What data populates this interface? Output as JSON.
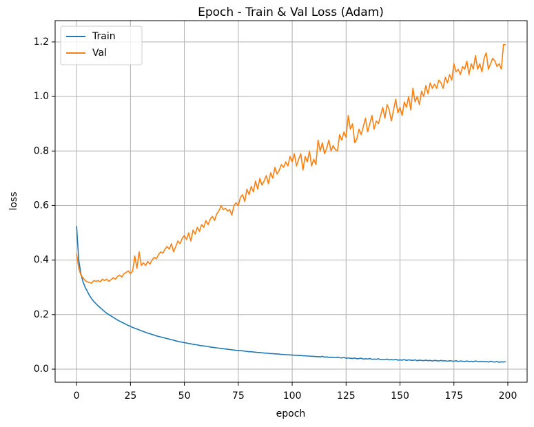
{
  "chart_data": {
    "type": "line",
    "title": "Epoch - Train & Val Loss (Adam)",
    "x_label": "epoch",
    "y_label": "loss",
    "x": [
      0,
      1,
      2,
      3,
      4,
      5,
      6,
      7,
      8,
      9,
      10,
      11,
      12,
      13,
      14,
      15,
      16,
      17,
      18,
      19,
      20,
      21,
      22,
      23,
      24,
      25,
      26,
      27,
      28,
      29,
      30,
      31,
      32,
      33,
      34,
      35,
      36,
      37,
      38,
      39,
      40,
      41,
      42,
      43,
      44,
      45,
      46,
      47,
      48,
      49,
      50,
      51,
      52,
      53,
      54,
      55,
      56,
      57,
      58,
      59,
      60,
      61,
      62,
      63,
      64,
      65,
      66,
      67,
      68,
      69,
      70,
      71,
      72,
      73,
      74,
      75,
      76,
      77,
      78,
      79,
      80,
      81,
      82,
      83,
      84,
      85,
      86,
      87,
      88,
      89,
      90,
      91,
      92,
      93,
      94,
      95,
      96,
      97,
      98,
      99,
      100,
      101,
      102,
      103,
      104,
      105,
      106,
      107,
      108,
      109,
      110,
      111,
      112,
      113,
      114,
      115,
      116,
      117,
      118,
      119,
      120,
      121,
      122,
      123,
      124,
      125,
      126,
      127,
      128,
      129,
      130,
      131,
      132,
      133,
      134,
      135,
      136,
      137,
      138,
      139,
      140,
      141,
      142,
      143,
      144,
      145,
      146,
      147,
      148,
      149,
      150,
      151,
      152,
      153,
      154,
      155,
      156,
      157,
      158,
      159,
      160,
      161,
      162,
      163,
      164,
      165,
      166,
      167,
      168,
      169,
      170,
      171,
      172,
      173,
      174,
      175,
      176,
      177,
      178,
      179,
      180,
      181,
      182,
      183,
      184,
      185,
      186,
      187,
      188,
      189,
      190,
      191,
      192,
      193,
      194,
      195,
      196,
      197,
      198,
      199
    ],
    "series": [
      {
        "name": "Train",
        "color": "#1f77b4",
        "values": [
          0.525,
          0.4,
          0.35,
          0.32,
          0.3,
          0.285,
          0.27,
          0.258,
          0.248,
          0.24,
          0.232,
          0.225,
          0.218,
          0.211,
          0.205,
          0.2,
          0.195,
          0.19,
          0.185,
          0.18,
          0.176,
          0.172,
          0.168,
          0.164,
          0.16,
          0.157,
          0.153,
          0.15,
          0.147,
          0.144,
          0.141,
          0.138,
          0.135,
          0.132,
          0.13,
          0.127,
          0.125,
          0.122,
          0.12,
          0.118,
          0.116,
          0.114,
          0.112,
          0.11,
          0.108,
          0.106,
          0.104,
          0.102,
          0.1,
          0.099,
          0.097,
          0.096,
          0.094,
          0.093,
          0.091,
          0.09,
          0.089,
          0.087,
          0.086,
          0.085,
          0.084,
          0.083,
          0.081,
          0.08,
          0.079,
          0.078,
          0.077,
          0.076,
          0.075,
          0.074,
          0.073,
          0.072,
          0.071,
          0.07,
          0.069,
          0.068,
          0.068,
          0.067,
          0.066,
          0.065,
          0.064,
          0.064,
          0.063,
          0.062,
          0.061,
          0.061,
          0.06,
          0.059,
          0.059,
          0.058,
          0.057,
          0.057,
          0.056,
          0.056,
          0.055,
          0.054,
          0.054,
          0.053,
          0.053,
          0.052,
          0.052,
          0.051,
          0.051,
          0.05,
          0.05,
          0.049,
          0.049,
          0.048,
          0.048,
          0.047,
          0.047,
          0.046,
          0.046,
          0.045,
          0.047,
          0.044,
          0.045,
          0.043,
          0.044,
          0.043,
          0.042,
          0.044,
          0.042,
          0.041,
          0.043,
          0.04,
          0.041,
          0.04,
          0.039,
          0.041,
          0.038,
          0.039,
          0.04,
          0.037,
          0.038,
          0.037,
          0.039,
          0.036,
          0.037,
          0.036,
          0.038,
          0.035,
          0.036,
          0.035,
          0.037,
          0.034,
          0.035,
          0.034,
          0.036,
          0.033,
          0.034,
          0.033,
          0.035,
          0.032,
          0.034,
          0.033,
          0.032,
          0.034,
          0.031,
          0.033,
          0.032,
          0.031,
          0.033,
          0.031,
          0.032,
          0.03,
          0.032,
          0.031,
          0.03,
          0.032,
          0.03,
          0.031,
          0.029,
          0.031,
          0.03,
          0.029,
          0.031,
          0.028,
          0.03,
          0.029,
          0.028,
          0.03,
          0.028,
          0.029,
          0.027,
          0.03,
          0.028,
          0.027,
          0.029,
          0.027,
          0.028,
          0.026,
          0.029,
          0.027,
          0.026,
          0.028,
          0.025,
          0.027,
          0.026,
          0.028
        ]
      },
      {
        "name": "Val",
        "color": "#ff7f0e",
        "values": [
          0.425,
          0.37,
          0.345,
          0.335,
          0.325,
          0.32,
          0.318,
          0.315,
          0.325,
          0.322,
          0.325,
          0.32,
          0.33,
          0.325,
          0.33,
          0.322,
          0.328,
          0.335,
          0.33,
          0.34,
          0.345,
          0.338,
          0.35,
          0.355,
          0.36,
          0.35,
          0.36,
          0.415,
          0.37,
          0.43,
          0.38,
          0.39,
          0.38,
          0.395,
          0.385,
          0.4,
          0.41,
          0.405,
          0.42,
          0.43,
          0.425,
          0.44,
          0.45,
          0.44,
          0.46,
          0.43,
          0.45,
          0.47,
          0.46,
          0.48,
          0.49,
          0.475,
          0.5,
          0.47,
          0.51,
          0.495,
          0.52,
          0.505,
          0.53,
          0.52,
          0.545,
          0.53,
          0.55,
          0.56,
          0.545,
          0.57,
          0.58,
          0.6,
          0.585,
          0.59,
          0.58,
          0.585,
          0.565,
          0.6,
          0.61,
          0.6,
          0.63,
          0.64,
          0.615,
          0.66,
          0.64,
          0.67,
          0.65,
          0.69,
          0.66,
          0.7,
          0.675,
          0.69,
          0.71,
          0.68,
          0.72,
          0.7,
          0.74,
          0.715,
          0.73,
          0.75,
          0.74,
          0.76,
          0.745,
          0.78,
          0.76,
          0.79,
          0.745,
          0.77,
          0.79,
          0.73,
          0.78,
          0.76,
          0.8,
          0.745,
          0.77,
          0.75,
          0.84,
          0.8,
          0.83,
          0.79,
          0.81,
          0.84,
          0.8,
          0.82,
          0.805,
          0.8,
          0.86,
          0.84,
          0.87,
          0.85,
          0.93,
          0.88,
          0.9,
          0.83,
          0.845,
          0.88,
          0.86,
          0.89,
          0.92,
          0.87,
          0.9,
          0.93,
          0.88,
          0.91,
          0.9,
          0.93,
          0.96,
          0.92,
          0.97,
          0.95,
          0.91,
          0.95,
          0.99,
          0.94,
          0.96,
          0.93,
          0.98,
          0.96,
          1.0,
          0.95,
          1.03,
          0.98,
          1.0,
          0.97,
          1.02,
          1.0,
          1.04,
          1.01,
          1.05,
          1.03,
          1.045,
          1.03,
          1.06,
          1.05,
          1.03,
          1.07,
          1.05,
          1.08,
          1.06,
          1.12,
          1.09,
          1.1,
          1.08,
          1.11,
          1.1,
          1.13,
          1.08,
          1.12,
          1.1,
          1.15,
          1.1,
          1.12,
          1.09,
          1.14,
          1.16,
          1.1,
          1.12,
          1.14,
          1.13,
          1.11,
          1.12,
          1.1,
          1.19,
          1.19
        ]
      }
    ],
    "xlim": [
      -9.95,
      208.95
    ],
    "ylim": [
      -0.048,
      1.278
    ],
    "xticks": [
      0,
      25,
      50,
      75,
      100,
      125,
      150,
      175,
      200
    ],
    "yticks": [
      {
        "value": 0,
        "label": "0.0"
      },
      0.2,
      0.4,
      0.6,
      0.8,
      {
        "value": 1,
        "label": "1.0"
      },
      1.2
    ],
    "grid": true,
    "legend": "upper left"
  }
}
